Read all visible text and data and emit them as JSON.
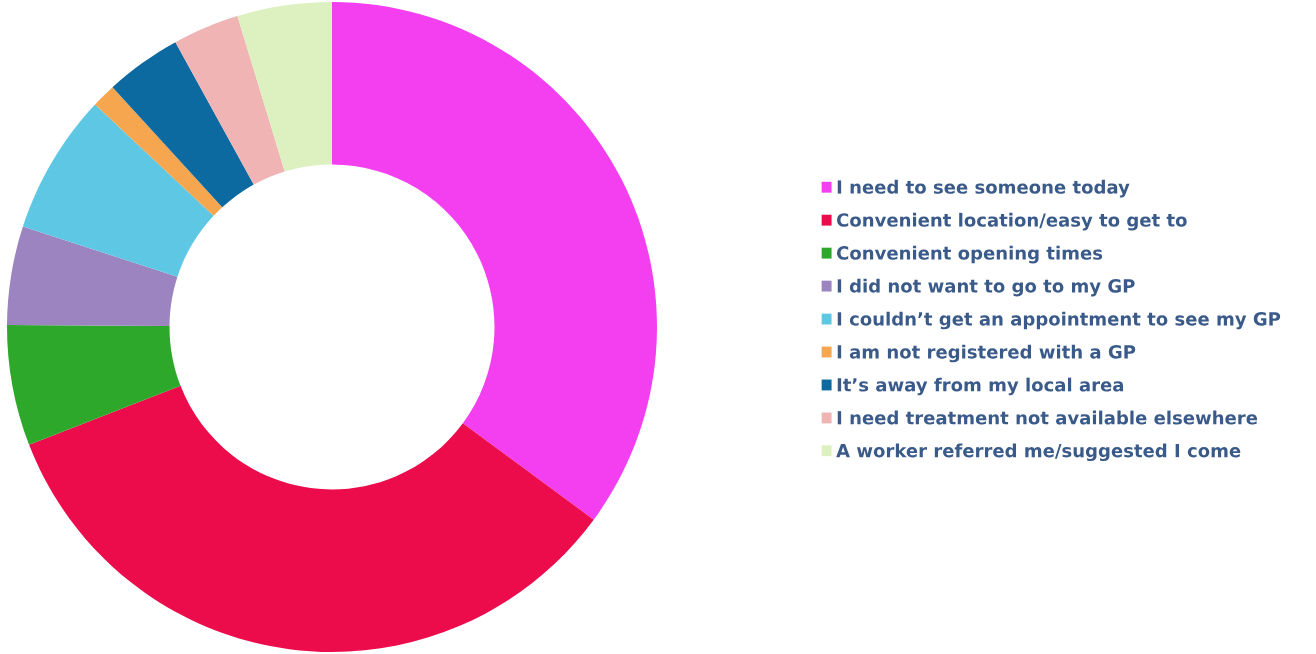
{
  "chart_data": {
    "type": "donut",
    "categories": [
      "I need to see someone today",
      "Convenient location/easy to get to",
      "Convenient opening times",
      "I did not want to go to my GP",
      "I couldn’t get an appointment to see my GP",
      "I am not registered with a GP",
      "It’s away from my local area",
      "I need treatment not available elsewhere",
      "A worker referred me/suggested I come"
    ],
    "values": [
      35.1,
      34.0,
      6.0,
      4.9,
      7.0,
      1.2,
      3.8,
      3.3,
      4.7
    ],
    "colors": [
      "#f43ff0",
      "#ec0c4c",
      "#2ea82a",
      "#9b84c0",
      "#5ec8e4",
      "#f7a650",
      "#0c6aa0",
      "#f0b4b4",
      "#dcf0c0"
    ],
    "legend": "right"
  }
}
